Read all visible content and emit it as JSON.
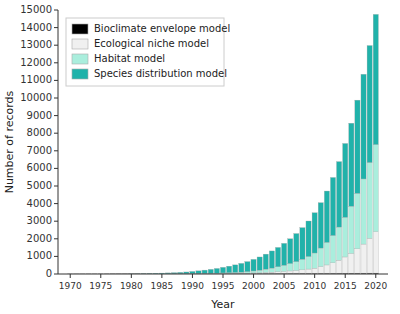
{
  "chart_data": {
    "type": "bar",
    "stacked": true,
    "legend": "upper left",
    "grid": false,
    "xlabel": "Year",
    "ylabel": "Number of records",
    "x": [
      1970,
      1971,
      1972,
      1973,
      1974,
      1975,
      1976,
      1977,
      1978,
      1979,
      1980,
      1981,
      1982,
      1983,
      1984,
      1985,
      1986,
      1987,
      1988,
      1989,
      1990,
      1991,
      1992,
      1993,
      1994,
      1995,
      1996,
      1997,
      1998,
      1999,
      2000,
      2001,
      2002,
      2003,
      2004,
      2005,
      2006,
      2007,
      2008,
      2009,
      2010,
      2011,
      2012,
      2013,
      2014,
      2015,
      2016,
      2017,
      2018,
      2019,
      2020
    ],
    "series": [
      {
        "name": "Bioclimate envelope model",
        "color": "#000000",
        "values": [
          5,
          5,
          5,
          6,
          6,
          7,
          8,
          9,
          10,
          11,
          12,
          13,
          14,
          15,
          16,
          17,
          18,
          19,
          20,
          21,
          22,
          23,
          24,
          25,
          26,
          27,
          28,
          29,
          30,
          31,
          32,
          33,
          34,
          35,
          36,
          37,
          38,
          39,
          40,
          41,
          42,
          43,
          44,
          45,
          46,
          47,
          48,
          49,
          50,
          51,
          52
        ]
      },
      {
        "name": "Ecological niche model",
        "color": "#f0f0f0",
        "values": [
          0,
          0,
          0,
          0,
          0,
          0,
          0,
          0,
          0,
          0,
          0,
          0,
          0,
          0,
          0,
          0,
          0,
          0,
          0,
          0,
          0,
          0,
          0,
          0,
          0,
          5,
          8,
          10,
          15,
          20,
          30,
          40,
          55,
          70,
          90,
          110,
          135,
          160,
          195,
          240,
          290,
          380,
          470,
          590,
          740,
          920,
          1120,
          1380,
          1650,
          1980,
          2350
        ]
      },
      {
        "name": "Habitat model",
        "color": "#aaeedd",
        "values": [
          0,
          0,
          0,
          0,
          0,
          0,
          0,
          0,
          0,
          0,
          0,
          0,
          0,
          0,
          0,
          0,
          0,
          0,
          0,
          0,
          5,
          8,
          12,
          15,
          20,
          28,
          35,
          45,
          60,
          80,
          110,
          145,
          185,
          230,
          285,
          345,
          420,
          500,
          600,
          710,
          860,
          1050,
          1280,
          1550,
          1880,
          2250,
          2680,
          3150,
          3700,
          4300,
          4950
        ]
      },
      {
        "name": "Species distribution model",
        "color": "#20b2aa",
        "values": [
          0,
          0,
          0,
          0,
          0,
          0,
          0,
          0,
          0,
          0,
          5,
          8,
          12,
          18,
          25,
          35,
          45,
          58,
          75,
          95,
          120,
          150,
          185,
          225,
          270,
          320,
          375,
          435,
          500,
          575,
          660,
          750,
          855,
          975,
          1100,
          1250,
          1410,
          1600,
          1800,
          2020,
          2290,
          2580,
          2920,
          3300,
          3720,
          4200,
          4720,
          5300,
          5950,
          6650,
          7400
        ]
      }
    ],
    "xlim": [
      1968,
      2022
    ],
    "xticks": [
      1970,
      1975,
      1980,
      1985,
      1990,
      1995,
      2000,
      2005,
      2010,
      2015,
      2020
    ],
    "ylim": [
      0,
      15000
    ],
    "yticks": [
      0,
      1000,
      2000,
      3000,
      4000,
      5000,
      6000,
      7000,
      8000,
      9000,
      10000,
      11000,
      12000,
      13000,
      14000,
      15000
    ]
  }
}
